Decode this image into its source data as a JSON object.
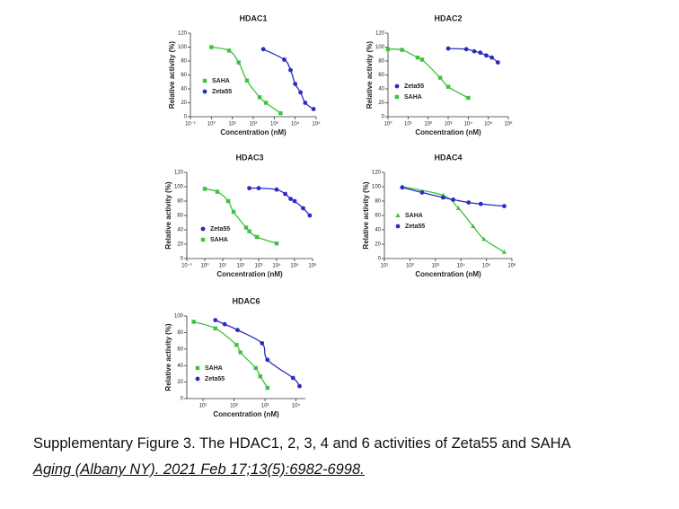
{
  "caption": "Supplementary Figure 3. The HDAC1, 2, 3, 4 and 6 activities of Zeta55 and SAHA",
  "citation": "Aging (Albany NY). 2021 Feb 17;13(5):6982-6998.",
  "chart_data": [
    {
      "type": "line",
      "title": "HDAC1",
      "xlabel": "Concentration (nM)",
      "ylabel": "Relative activity  (%)",
      "xscale": "log",
      "xlim": [
        0.1,
        100000
      ],
      "xticks": [
        {
          "value": 0.1,
          "label": "10⁻¹"
        },
        {
          "value": 1,
          "label": "10⁰"
        },
        {
          "value": 10,
          "label": "10¹"
        },
        {
          "value": 100,
          "label": "10²"
        },
        {
          "value": 1000,
          "label": "10³"
        },
        {
          "value": 10000,
          "label": "10⁴"
        },
        {
          "value": 100000,
          "label": "10⁵"
        }
      ],
      "ylim": [
        0,
        120
      ],
      "yticks": [
        0,
        20,
        40,
        60,
        80,
        100,
        120
      ],
      "series": [
        {
          "name": "SAHA",
          "color": "#3cc23c",
          "marker": "square",
          "x": [
            1,
            7,
            20,
            50,
            200,
            400,
            2000
          ],
          "values": [
            100,
            95,
            78,
            52,
            28,
            20,
            5
          ]
        },
        {
          "name": "Zeta55",
          "color": "#2b2bc4",
          "marker": "circle",
          "x": [
            300,
            3000,
            6000,
            10000,
            18000,
            30000,
            75000
          ],
          "values": [
            97,
            82,
            67,
            47,
            35,
            20,
            11
          ]
        }
      ]
    },
    {
      "type": "line",
      "title": "HDAC2",
      "xlabel": "Concentration (nM)",
      "ylabel": "Relative activity  (%)",
      "xscale": "log",
      "xlim": [
        1,
        1000000
      ],
      "xticks": [
        {
          "value": 1,
          "label": "10⁰"
        },
        {
          "value": 10,
          "label": "10¹"
        },
        {
          "value": 100,
          "label": "10²"
        },
        {
          "value": 1000,
          "label": "10³"
        },
        {
          "value": 10000,
          "label": "10⁴"
        },
        {
          "value": 100000,
          "label": "10⁵"
        },
        {
          "value": 1000000,
          "label": "10⁶"
        }
      ],
      "ylim": [
        0,
        120
      ],
      "yticks": [
        0,
        20,
        40,
        60,
        80,
        100,
        120
      ],
      "series": [
        {
          "name": "Zeta55",
          "color": "#2b2bc4",
          "marker": "circle",
          "x": [
            1000,
            8000,
            20000,
            40000,
            80000,
            150000,
            300000
          ],
          "values": [
            98,
            97,
            94,
            92,
            88,
            85,
            78
          ]
        },
        {
          "name": "SAHA",
          "color": "#3cc23c",
          "marker": "square",
          "x": [
            1,
            5,
            30,
            50,
            400,
            1000,
            10000
          ],
          "values": [
            97,
            96,
            85,
            82,
            56,
            43,
            27
          ]
        }
      ]
    },
    {
      "type": "line",
      "title": "HDAC3",
      "xlabel": "Concentration (nM)",
      "ylabel": "Relative activity  (%)",
      "xscale": "log",
      "xlim": [
        0.1,
        1000000
      ],
      "xticks": [
        {
          "value": 0.1,
          "label": "10⁻¹"
        },
        {
          "value": 1,
          "label": "10⁰"
        },
        {
          "value": 10,
          "label": "10¹"
        },
        {
          "value": 100,
          "label": "10²"
        },
        {
          "value": 1000,
          "label": "10³"
        },
        {
          "value": 10000,
          "label": "10⁴"
        },
        {
          "value": 100000,
          "label": "10⁵"
        },
        {
          "value": 1000000,
          "label": "10⁶"
        }
      ],
      "ylim": [
        0,
        120
      ],
      "yticks": [
        0,
        20,
        40,
        60,
        80,
        100,
        120
      ],
      "series": [
        {
          "name": "Zeta55",
          "color": "#2b2bc4",
          "marker": "circle",
          "x": [
            300,
            1000,
            10000,
            30000,
            60000,
            100000,
            300000,
            700000
          ],
          "values": [
            98,
            98,
            96,
            90,
            83,
            80,
            70,
            60
          ]
        },
        {
          "name": "SAHA",
          "color": "#3cc23c",
          "marker": "square",
          "x": [
            1,
            5,
            20,
            40,
            200,
            300,
            800,
            10000
          ],
          "values": [
            97,
            93,
            80,
            65,
            43,
            38,
            30,
            21
          ]
        }
      ]
    },
    {
      "type": "line",
      "title": "HDAC4",
      "xlabel": "Concentration (nM)",
      "ylabel": "Relative activity  (%)",
      "xscale": "log",
      "xlim": [
        10,
        1000000
      ],
      "xticks": [
        {
          "value": 10,
          "label": "10¹"
        },
        {
          "value": 100,
          "label": "10²"
        },
        {
          "value": 1000,
          "label": "10³"
        },
        {
          "value": 10000,
          "label": "10⁴"
        },
        {
          "value": 100000,
          "label": "10⁵"
        },
        {
          "value": 1000000,
          "label": "10⁶"
        }
      ],
      "ylim": [
        0,
        120
      ],
      "yticks": [
        0,
        20,
        40,
        60,
        80,
        100,
        120
      ],
      "series": [
        {
          "name": "SAHA",
          "color": "#3cc23c",
          "marker": "triangle",
          "x": [
            50,
            2000,
            8000,
            30000,
            80000,
            500000
          ],
          "values": [
            100,
            88,
            70,
            45,
            27,
            9
          ]
        },
        {
          "name": "Zeta55",
          "color": "#2b2bc4",
          "marker": "circle",
          "x": [
            50,
            300,
            2000,
            5000,
            20000,
            60000,
            500000
          ],
          "values": [
            99,
            92,
            85,
            82,
            78,
            76,
            73
          ]
        }
      ]
    },
    {
      "type": "line",
      "title": "HDAC6",
      "xlabel": "Concentration (nM)",
      "ylabel": "Relative activity  (%)",
      "xscale": "log",
      "xlim": [
        3,
        20000
      ],
      "xticks": [
        {
          "value": 10,
          "label": "10¹"
        },
        {
          "value": 100,
          "label": "10²"
        },
        {
          "value": 1000,
          "label": "10³"
        },
        {
          "value": 10000,
          "label": "10⁴"
        }
      ],
      "ylim": [
        0,
        100
      ],
      "yticks": [
        0,
        20,
        40,
        60,
        80,
        100
      ],
      "series": [
        {
          "name": "SAHA",
          "color": "#3cc23c",
          "marker": "square",
          "x": [
            5,
            25,
            120,
            160,
            500,
            700,
            1200
          ],
          "values": [
            93,
            85,
            65,
            56,
            37,
            27,
            13
          ]
        },
        {
          "name": "Zeta55",
          "color": "#2b2bc4",
          "marker": "circle",
          "x": [
            25,
            50,
            130,
            800,
            1200,
            8000,
            13000
          ],
          "values": [
            95,
            90,
            83,
            67,
            47,
            25,
            15
          ]
        }
      ]
    }
  ]
}
